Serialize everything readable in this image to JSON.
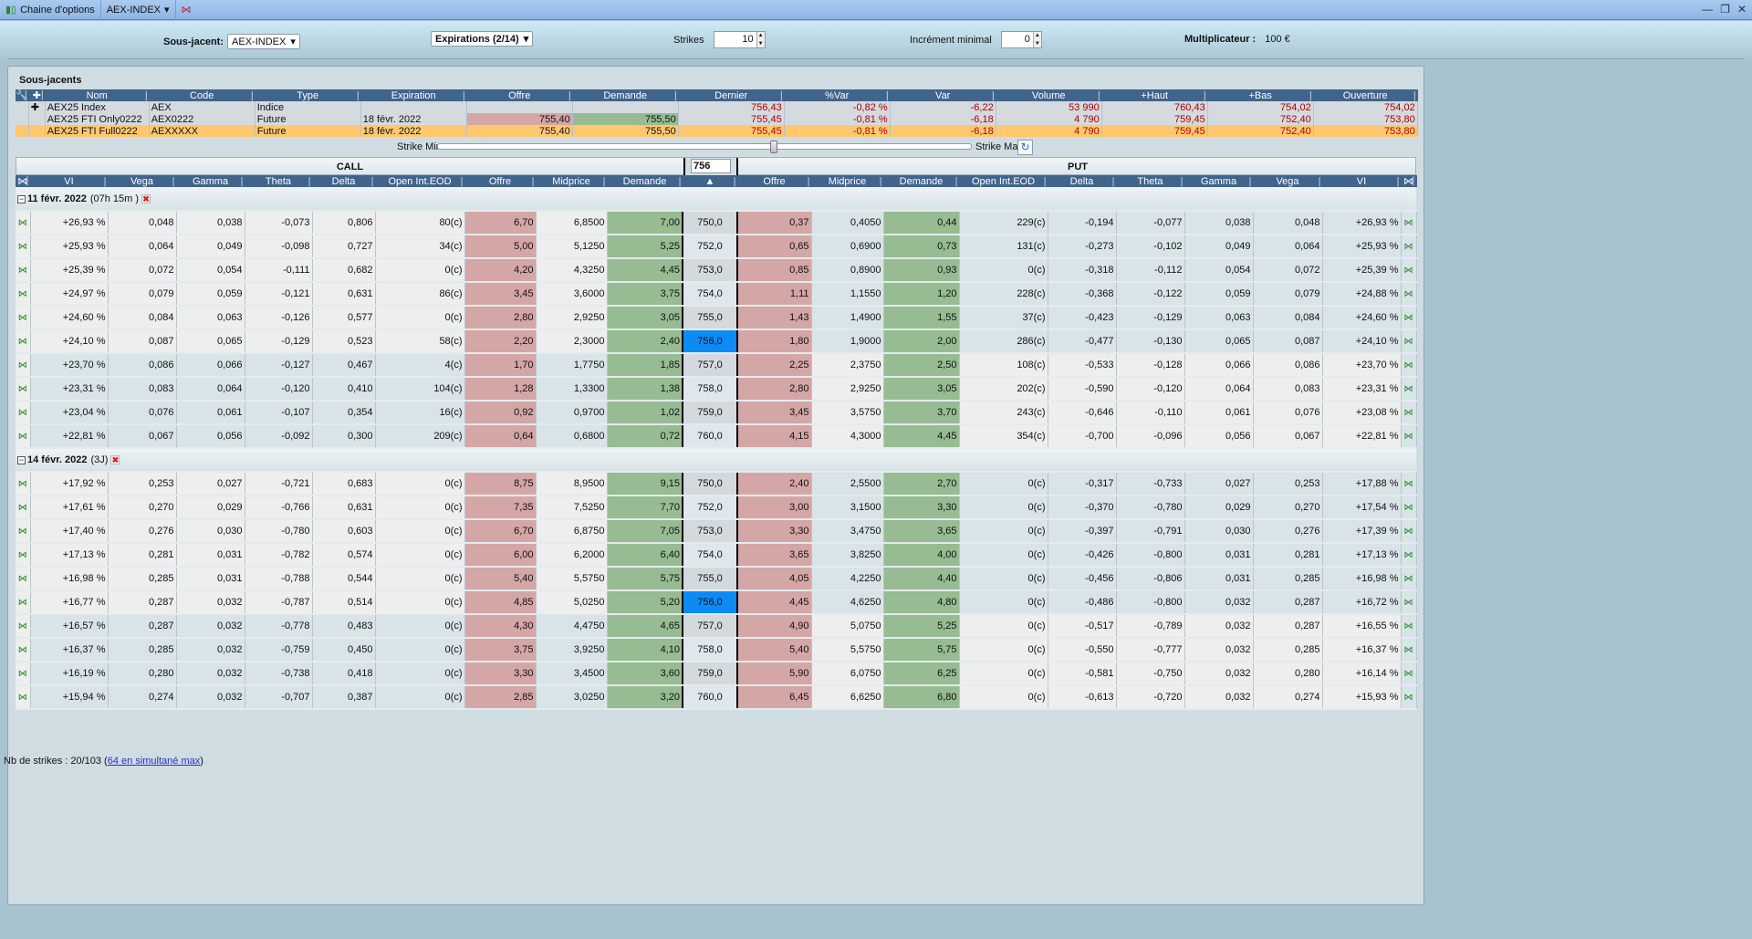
{
  "titlebar": {
    "app_title": "Chaine d'options",
    "symbol": "AEX-INDEX",
    "window_controls": [
      "minimize",
      "restore",
      "close"
    ]
  },
  "toolbar": {
    "underlying_label": "Sous-jacent:",
    "underlying_value": "AEX-INDEX",
    "expirations_label": "Expirations (2/14)",
    "strikes_label": "Strikes",
    "strikes_value": "10",
    "increment_label": "Incrément minimal",
    "increment_value": "0",
    "multiplier_label": "Multiplicateur :",
    "multiplier_value": "100 €"
  },
  "underlyings": {
    "title": "Sous-jacents",
    "columns": [
      "Nom",
      "Code",
      "Type",
      "Expiration",
      "Offre",
      "Demande",
      "Dernier",
      "%Var",
      "Var",
      "Volume",
      "+Haut",
      "+Bas",
      "Ouverture"
    ],
    "rows": [
      [
        "AEX25 Index",
        "AEX",
        "Indice",
        "",
        "",
        "",
        "756,43",
        "-0,82 %",
        "-6,22",
        "53 990",
        "760,43",
        "754,02",
        "754,02"
      ],
      [
        "AEX25 FTI Only0222",
        "AEX0222",
        "Future",
        "18 févr. 2022",
        "755,40",
        "755,50",
        "755,45",
        "-0,81 %",
        "-6,18",
        "4 790",
        "759,45",
        "752,40",
        "753,80"
      ],
      [
        "AEX25 FTI Full0222",
        "AEXXXXX",
        "Future",
        "18 févr. 2022",
        "755,40",
        "755,50",
        "755,45",
        "-0,81 %",
        "-6,18",
        "4 790",
        "759,45",
        "752,40",
        "753,80"
      ]
    ],
    "selected_row": 2,
    "highlight_color": "#ffc86e"
  },
  "strike_range": {
    "min_label": "Strike Min",
    "max_label": "Strike Max",
    "slider_position": 0.63
  },
  "chain": {
    "call_label": "CALL",
    "put_label": "PUT",
    "strike_value": "756",
    "atm_strike": "756,0",
    "atm_color": "#0d8bf5",
    "bid_color": "#d5a6a6",
    "ask_color": "#97bb92",
    "call_columns": [
      "VI",
      "Vega",
      "Gamma",
      "Theta",
      "Delta",
      "Open Int.EOD",
      "Offre",
      "Midprice",
      "Demande"
    ],
    "put_columns": [
      "Offre",
      "Midprice",
      "Demande",
      "Open Int.EOD",
      "Delta",
      "Theta",
      "Gamma",
      "Vega",
      "VI"
    ],
    "groups": [
      {
        "date": "11 févr. 2022",
        "remaining": "(07h 15m )",
        "rows": [
          {
            "strike": "750,0",
            "call": [
              "+26,93 %",
              "0,048",
              "0,038",
              "-0,073",
              "0,806",
              "80(c)",
              "6,70",
              "6,8500",
              "7,00"
            ],
            "put": [
              "0,37",
              "0,4050",
              "0,44",
              "229(c)",
              "-0,194",
              "-0,077",
              "0,038",
              "0,048",
              "+26,93 %"
            ]
          },
          {
            "strike": "752,0",
            "call": [
              "+25,93 %",
              "0,064",
              "0,049",
              "-0,098",
              "0,727",
              "34(c)",
              "5,00",
              "5,1250",
              "5,25"
            ],
            "put": [
              "0,65",
              "0,6900",
              "0,73",
              "131(c)",
              "-0,273",
              "-0,102",
              "0,049",
              "0,064",
              "+25,93 %"
            ]
          },
          {
            "strike": "753,0",
            "call": [
              "+25,39 %",
              "0,072",
              "0,054",
              "-0,111",
              "0,682",
              "0(c)",
              "4,20",
              "4,3250",
              "4,45"
            ],
            "put": [
              "0,85",
              "0,8900",
              "0,93",
              "0(c)",
              "-0,318",
              "-0,112",
              "0,054",
              "0,072",
              "+25,39 %"
            ]
          },
          {
            "strike": "754,0",
            "call": [
              "+24,97 %",
              "0,079",
              "0,059",
              "-0,121",
              "0,631",
              "86(c)",
              "3,45",
              "3,6000",
              "3,75"
            ],
            "put": [
              "1,11",
              "1,1550",
              "1,20",
              "228(c)",
              "-0,368",
              "-0,122",
              "0,059",
              "0,079",
              "+24,88 %"
            ]
          },
          {
            "strike": "755,0",
            "call": [
              "+24,60 %",
              "0,084",
              "0,063",
              "-0,126",
              "0,577",
              "0(c)",
              "2,80",
              "2,9250",
              "3,05"
            ],
            "put": [
              "1,43",
              "1,4900",
              "1,55",
              "37(c)",
              "-0,423",
              "-0,129",
              "0,063",
              "0,084",
              "+24,60 %"
            ]
          },
          {
            "strike": "756,0",
            "call": [
              "+24,10 %",
              "0,087",
              "0,065",
              "-0,129",
              "0,523",
              "58(c)",
              "2,20",
              "2,3000",
              "2,40"
            ],
            "put": [
              "1,80",
              "1,9000",
              "2,00",
              "286(c)",
              "-0,477",
              "-0,130",
              "0,065",
              "0,087",
              "+24,10 %"
            ]
          },
          {
            "strike": "757,0",
            "call": [
              "+23,70 %",
              "0,086",
              "0,066",
              "-0,127",
              "0,467",
              "4(c)",
              "1,70",
              "1,7750",
              "1,85"
            ],
            "put": [
              "2,25",
              "2,3750",
              "2,50",
              "108(c)",
              "-0,533",
              "-0,128",
              "0,066",
              "0,086",
              "+23,70 %"
            ]
          },
          {
            "strike": "758,0",
            "call": [
              "+23,31 %",
              "0,083",
              "0,064",
              "-0,120",
              "0,410",
              "104(c)",
              "1,28",
              "1,3300",
              "1,38"
            ],
            "put": [
              "2,80",
              "2,9250",
              "3,05",
              "202(c)",
              "-0,590",
              "-0,120",
              "0,064",
              "0,083",
              "+23,31 %"
            ]
          },
          {
            "strike": "759,0",
            "call": [
              "+23,04 %",
              "0,076",
              "0,061",
              "-0,107",
              "0,354",
              "16(c)",
              "0,92",
              "0,9700",
              "1,02"
            ],
            "put": [
              "3,45",
              "3,5750",
              "3,70",
              "243(c)",
              "-0,646",
              "-0,110",
              "0,061",
              "0,076",
              "+23,08 %"
            ]
          },
          {
            "strike": "760,0",
            "call": [
              "+22,81 %",
              "0,067",
              "0,056",
              "-0,092",
              "0,300",
              "209(c)",
              "0,64",
              "0,6800",
              "0,72"
            ],
            "put": [
              "4,15",
              "4,3000",
              "4,45",
              "354(c)",
              "-0,700",
              "-0,096",
              "0,056",
              "0,067",
              "+22,81 %"
            ]
          }
        ]
      },
      {
        "date": "14 févr. 2022",
        "remaining": "(3J)",
        "rows": [
          {
            "strike": "750,0",
            "call": [
              "+17,92 %",
              "0,253",
              "0,027",
              "-0,721",
              "0,683",
              "0(c)",
              "8,75",
              "8,9500",
              "9,15"
            ],
            "put": [
              "2,40",
              "2,5500",
              "2,70",
              "0(c)",
              "-0,317",
              "-0,733",
              "0,027",
              "0,253",
              "+17,88 %"
            ]
          },
          {
            "strike": "752,0",
            "call": [
              "+17,61 %",
              "0,270",
              "0,029",
              "-0,766",
              "0,631",
              "0(c)",
              "7,35",
              "7,5250",
              "7,70"
            ],
            "put": [
              "3,00",
              "3,1500",
              "3,30",
              "0(c)",
              "-0,370",
              "-0,780",
              "0,029",
              "0,270",
              "+17,54 %"
            ]
          },
          {
            "strike": "753,0",
            "call": [
              "+17,40 %",
              "0,276",
              "0,030",
              "-0,780",
              "0,603",
              "0(c)",
              "6,70",
              "6,8750",
              "7,05"
            ],
            "put": [
              "3,30",
              "3,4750",
              "3,65",
              "0(c)",
              "-0,397",
              "-0,791",
              "0,030",
              "0,276",
              "+17,39 %"
            ]
          },
          {
            "strike": "754,0",
            "call": [
              "+17,13 %",
              "0,281",
              "0,031",
              "-0,782",
              "0,574",
              "0(c)",
              "6,00",
              "6,2000",
              "6,40"
            ],
            "put": [
              "3,65",
              "3,8250",
              "4,00",
              "0(c)",
              "-0,426",
              "-0,800",
              "0,031",
              "0,281",
              "+17,13 %"
            ]
          },
          {
            "strike": "755,0",
            "call": [
              "+16,98 %",
              "0,285",
              "0,031",
              "-0,788",
              "0,544",
              "0(c)",
              "5,40",
              "5,5750",
              "5,75"
            ],
            "put": [
              "4,05",
              "4,2250",
              "4,40",
              "0(c)",
              "-0,456",
              "-0,806",
              "0,031",
              "0,285",
              "+16,98 %"
            ]
          },
          {
            "strike": "756,0",
            "call": [
              "+16,77 %",
              "0,287",
              "0,032",
              "-0,787",
              "0,514",
              "0(c)",
              "4,85",
              "5,0250",
              "5,20"
            ],
            "put": [
              "4,45",
              "4,6250",
              "4,80",
              "0(c)",
              "-0,486",
              "-0,800",
              "0,032",
              "0,287",
              "+16,72 %"
            ]
          },
          {
            "strike": "757,0",
            "call": [
              "+16,57 %",
              "0,287",
              "0,032",
              "-0,778",
              "0,483",
              "0(c)",
              "4,30",
              "4,4750",
              "4,65"
            ],
            "put": [
              "4,90",
              "5,0750",
              "5,25",
              "0(c)",
              "-0,517",
              "-0,789",
              "0,032",
              "0,287",
              "+16,55 %"
            ]
          },
          {
            "strike": "758,0",
            "call": [
              "+16,37 %",
              "0,285",
              "0,032",
              "-0,759",
              "0,450",
              "0(c)",
              "3,75",
              "3,9250",
              "4,10"
            ],
            "put": [
              "5,40",
              "5,5750",
              "5,75",
              "0(c)",
              "-0,550",
              "-0,777",
              "0,032",
              "0,285",
              "+16,37 %"
            ]
          },
          {
            "strike": "759,0",
            "call": [
              "+16,19 %",
              "0,280",
              "0,032",
              "-0,738",
              "0,418",
              "0(c)",
              "3,30",
              "3,4500",
              "3,60"
            ],
            "put": [
              "5,90",
              "6,0750",
              "6,25",
              "0(c)",
              "-0,581",
              "-0,750",
              "0,032",
              "0,280",
              "+16,14 %"
            ]
          },
          {
            "strike": "760,0",
            "call": [
              "+15,94 %",
              "0,274",
              "0,032",
              "-0,707",
              "0,387",
              "0(c)",
              "2,85",
              "3,0250",
              "3,20"
            ],
            "put": [
              "6,45",
              "6,6250",
              "6,80",
              "0(c)",
              "-0,613",
              "-0,720",
              "0,032",
              "0,274",
              "+15,93 %"
            ]
          }
        ]
      }
    ]
  },
  "status": {
    "text": "Nb de strikes : 20/103 (",
    "link": "64 en simultané max",
    "close": ")"
  }
}
